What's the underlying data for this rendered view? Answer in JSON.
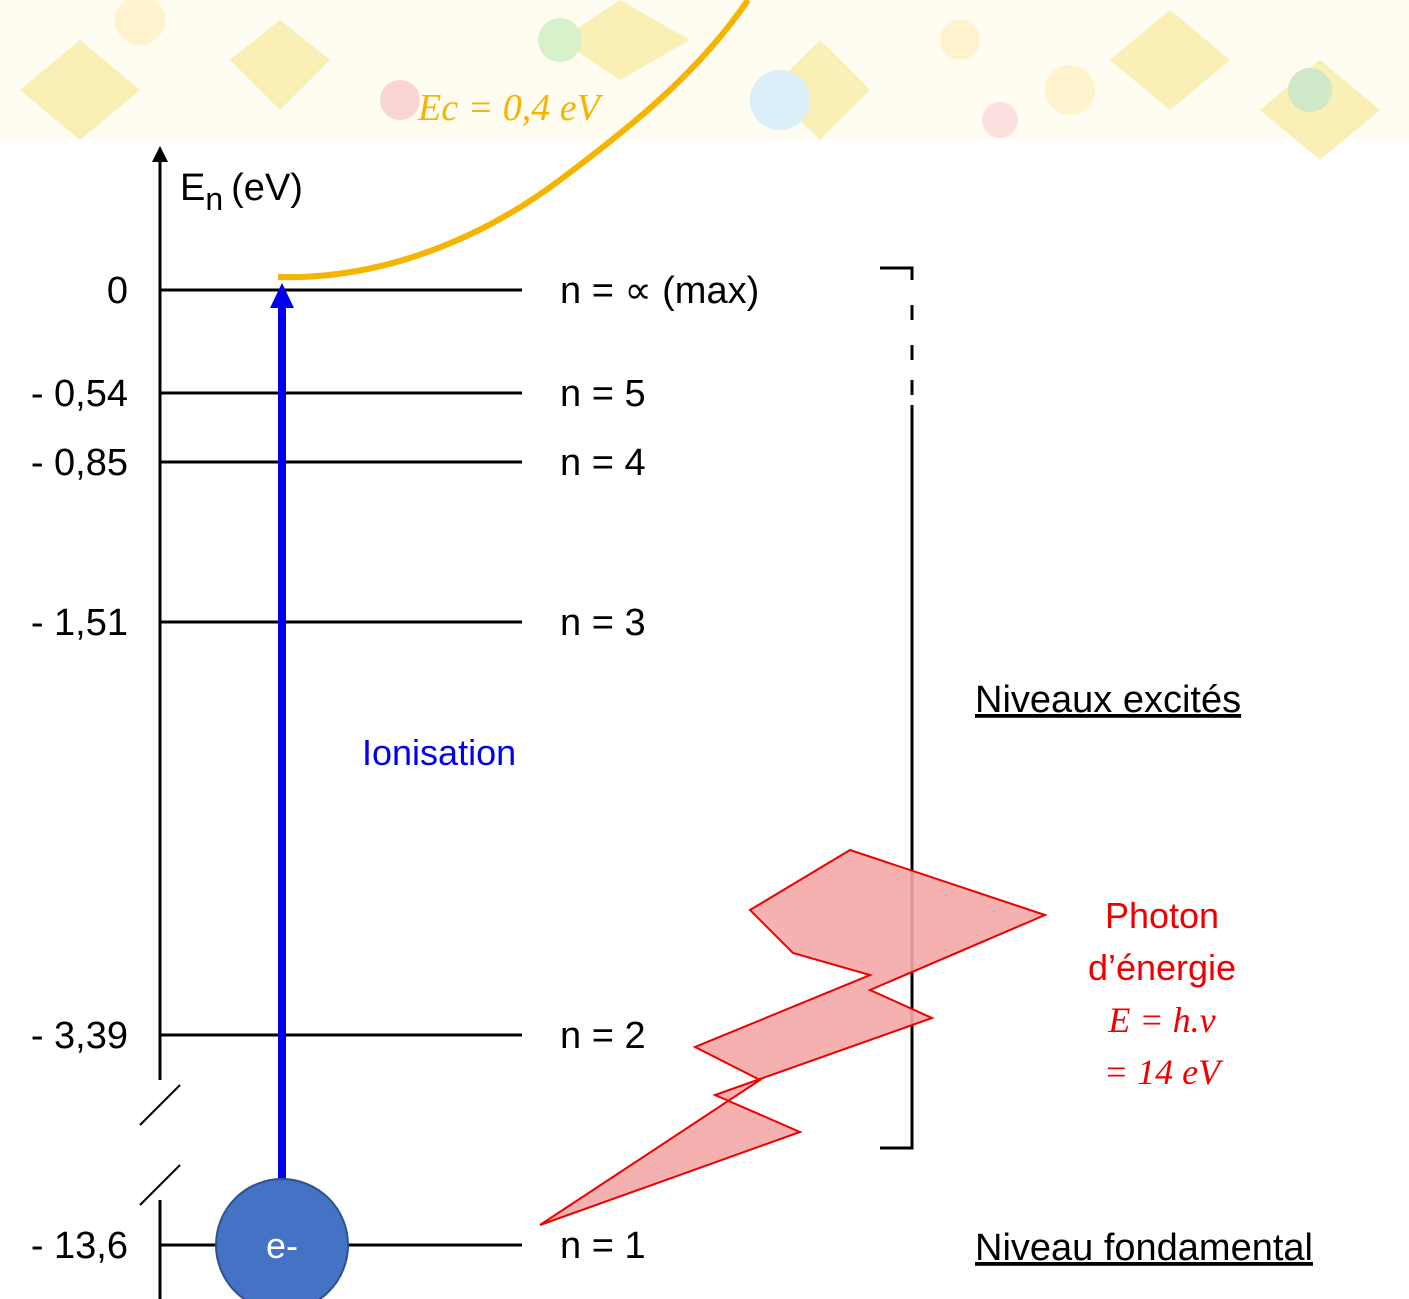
{
  "axis": {
    "symbol": "E",
    "subscript": "n",
    "unit": "(eV)"
  },
  "levels": [
    {
      "energy": "0",
      "label": "n = ∝  (max)"
    },
    {
      "energy": "- 0,54",
      "label": "n = 5"
    },
    {
      "energy": "- 0,85",
      "label": "n = 4"
    },
    {
      "energy": "- 1,51",
      "label": "n = 3"
    },
    {
      "energy": "- 3,39",
      "label": "n = 2"
    },
    {
      "energy": "- 13,6",
      "label": "n = 1"
    }
  ],
  "groups": {
    "excited": "Niveaux excités",
    "ground": "Niveau fondamental"
  },
  "transition": "Ionisation",
  "electron": "e-",
  "kinetic_energy": "Ec = 0,4 eV",
  "photon": [
    "Photon",
    "d’énergie",
    "E = h.ν",
    "= 14 eV"
  ]
}
